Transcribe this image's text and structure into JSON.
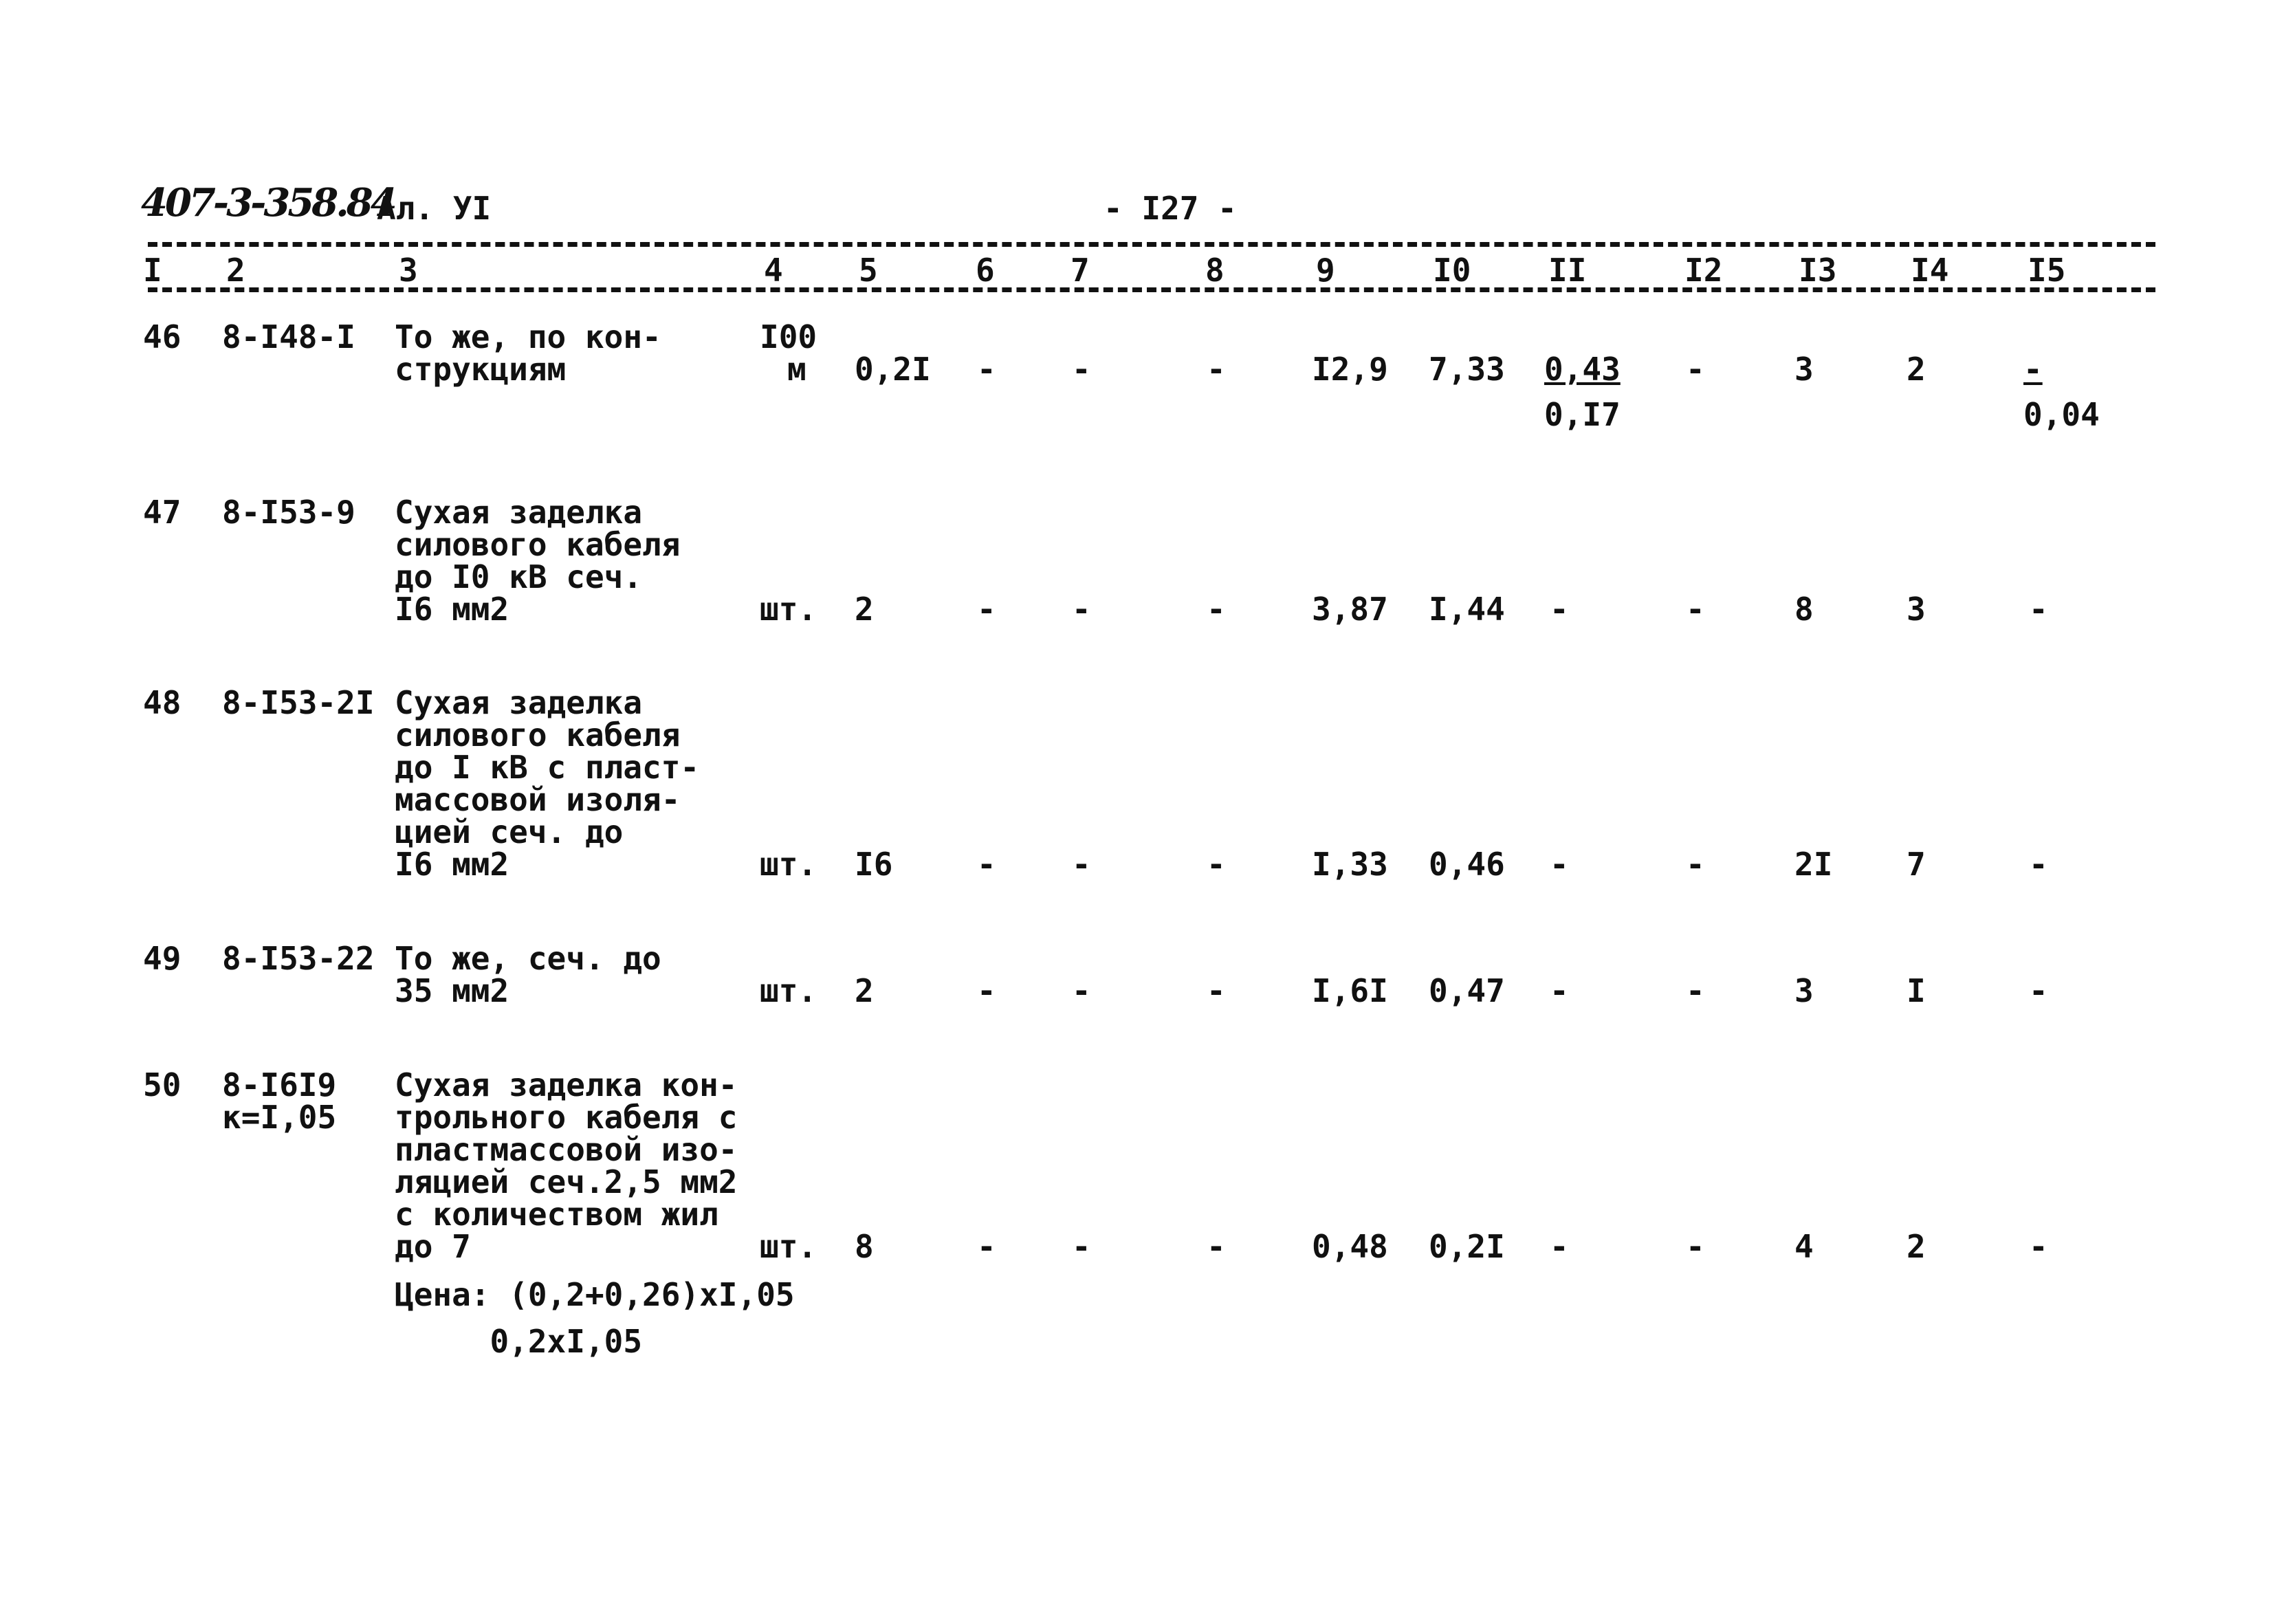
{
  "header": {
    "doc_code": "407-3-358.84",
    "album": "Ал. УI",
    "page_number": "- I27 -"
  },
  "columns": [
    "I",
    "2",
    "3",
    "4",
    "5",
    "6",
    "7",
    "8",
    "9",
    "I0",
    "II",
    "I2",
    "I3",
    "I4",
    "I5"
  ],
  "rows": [
    {
      "num": "46",
      "code": [
        "8-I48-I"
      ],
      "desc": [
        "То же, по кон-",
        "струкциям"
      ],
      "unit": [
        "I00",
        "м"
      ],
      "c5": "0,2I",
      "c6": "-",
      "c7": "-",
      "c8": "-",
      "c9": "I2,9",
      "c10": "7,33",
      "c11": {
        "top": "0,43",
        "bottom": "0,I7"
      },
      "c12": "-",
      "c13": "3",
      "c14": "2",
      "c15": {
        "top": "-",
        "bottom": "0,04"
      }
    },
    {
      "num": "47",
      "code": [
        "8-I53-9"
      ],
      "desc": [
        "Сухая заделка",
        "силового кабеля",
        "до I0 кВ сеч.",
        "I6 мм2"
      ],
      "unit": [
        "шт."
      ],
      "c5": "2",
      "c6": "-",
      "c7": "-",
      "c8": "-",
      "c9": "3,87",
      "c10": "I,44",
      "c11": "-",
      "c12": "-",
      "c13": "8",
      "c14": "3",
      "c15": "-"
    },
    {
      "num": "48",
      "code": [
        "8-I53-2I"
      ],
      "desc": [
        "Сухая заделка",
        "силового кабеля",
        "до I кВ с пласт-",
        "массовой изоля-",
        "цией сеч. до",
        "I6 мм2"
      ],
      "unit": [
        "шт."
      ],
      "c5": "I6",
      "c6": "-",
      "c7": "-",
      "c8": "-",
      "c9": "I,33",
      "c10": "0,46",
      "c11": "-",
      "c12": "-",
      "c13": "2I",
      "c14": "7",
      "c15": "-"
    },
    {
      "num": "49",
      "code": [
        "8-I53-22"
      ],
      "desc": [
        "То же, сеч. до",
        "35 мм2"
      ],
      "unit": [
        "шт."
      ],
      "c5": "2",
      "c6": "-",
      "c7": "-",
      "c8": "-",
      "c9": "I,6I",
      "c10": "0,47",
      "c11": "-",
      "c12": "-",
      "c13": "3",
      "c14": "I",
      "c15": "-"
    },
    {
      "num": "50",
      "code": [
        "8-I6I9",
        "к=I,05"
      ],
      "desc": [
        "Сухая заделка кон-",
        "трольного кабеля с",
        "пластмассовой изо-",
        "ляцией сеч.2,5 мм2",
        "с количеством жил",
        "до 7"
      ],
      "unit": [
        "шт."
      ],
      "c5": "8",
      "c6": "-",
      "c7": "-",
      "c8": "-",
      "c9": "0,48",
      "c10": "0,2I",
      "c11": "-",
      "c12": "-",
      "c13": "4",
      "c14": "2",
      "c15": "-",
      "notes": [
        "Цена: (0,2+0,26)xI,05",
        "     0,2xI,05"
      ]
    }
  ]
}
